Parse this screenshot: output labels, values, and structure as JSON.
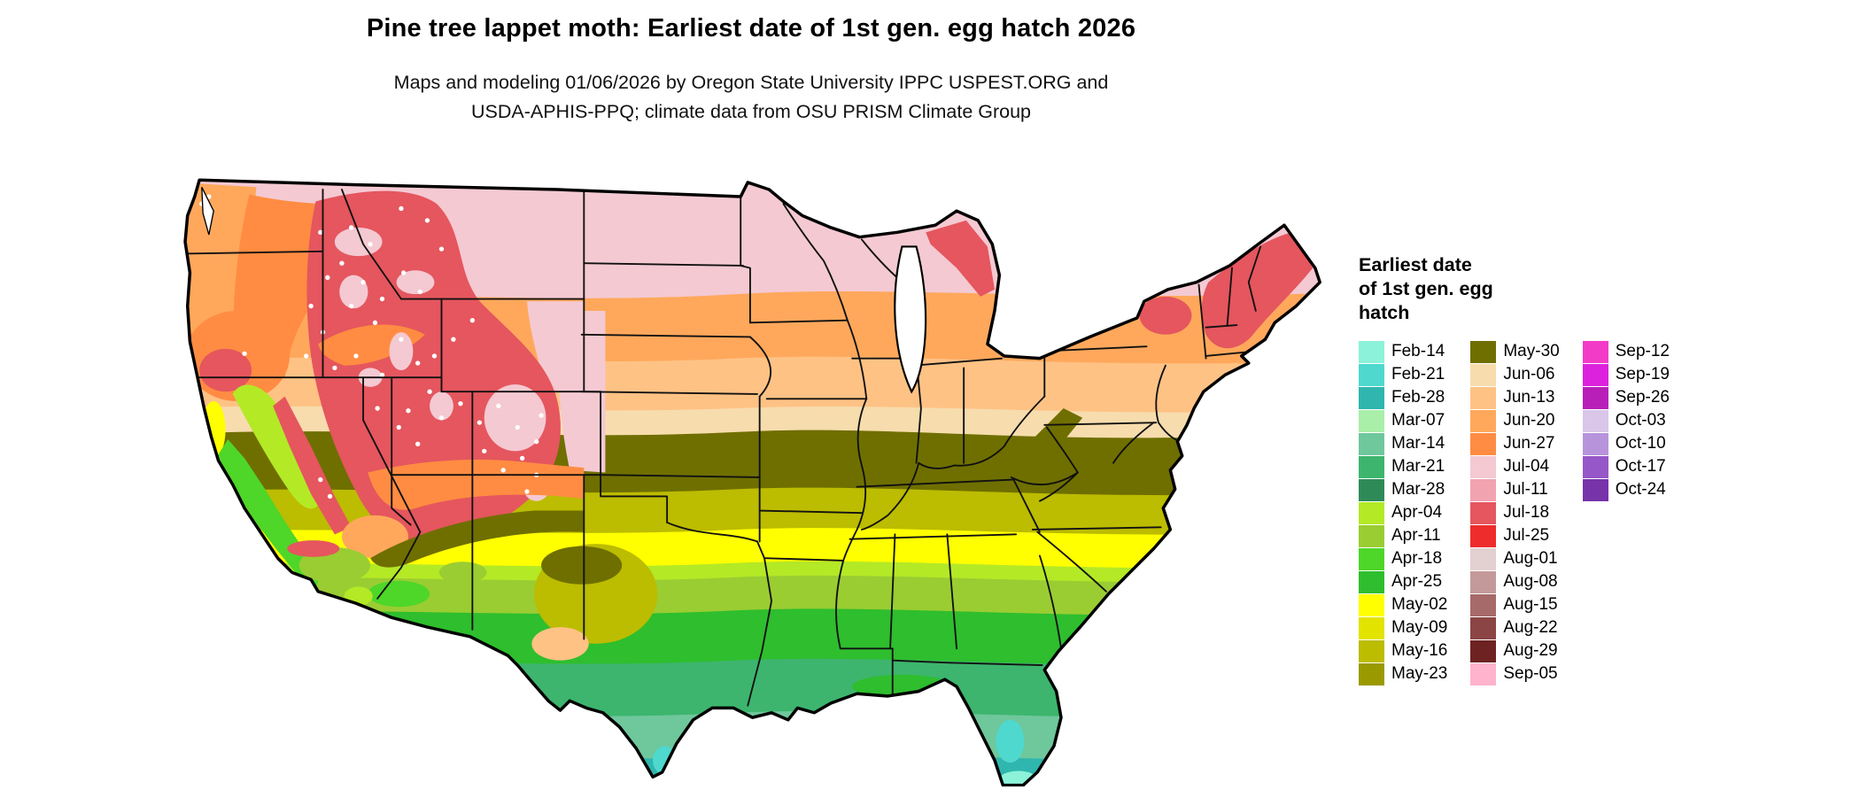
{
  "header": {
    "title": "Pine tree lappet moth: Earliest date of 1st gen. egg hatch 2026",
    "subtitle_line1": "Maps and modeling 01/06/2026 by Oregon State University IPPC USPEST.ORG and",
    "subtitle_line2": "USDA-APHIS-PPQ; climate data from OSU PRISM Climate Group"
  },
  "legend": {
    "title": "Earliest date\nof 1st gen. egg\nhatch",
    "columns": [
      [
        {
          "label": "Feb-14",
          "color": "#8cf2da"
        },
        {
          "label": "Feb-21",
          "color": "#4fd8ce"
        },
        {
          "label": "Feb-28",
          "color": "#2fb6ae"
        },
        {
          "label": "Mar-07",
          "color": "#a9efa9"
        },
        {
          "label": "Mar-14",
          "color": "#6fc79c"
        },
        {
          "label": "Mar-21",
          "color": "#3db56e"
        },
        {
          "label": "Mar-28",
          "color": "#2e8b57"
        },
        {
          "label": "Apr-04",
          "color": "#b4e926"
        },
        {
          "label": "Apr-11",
          "color": "#9acd32"
        },
        {
          "label": "Apr-18",
          "color": "#4ed629"
        },
        {
          "label": "Apr-25",
          "color": "#2ebe2e"
        },
        {
          "label": "May-02",
          "color": "#ffff00"
        },
        {
          "label": "May-09",
          "color": "#e3e300"
        },
        {
          "label": "May-16",
          "color": "#bcbc00"
        },
        {
          "label": "May-23",
          "color": "#9a9a00"
        }
      ],
      [
        {
          "label": "May-30",
          "color": "#6f6f00"
        },
        {
          "label": "Jun-06",
          "color": "#f7dcad"
        },
        {
          "label": "Jun-13",
          "color": "#ffc285"
        },
        {
          "label": "Jun-20",
          "color": "#ffa85c"
        },
        {
          "label": "Jun-27",
          "color": "#ff8c42"
        },
        {
          "label": "Jul-04",
          "color": "#f4c9d2"
        },
        {
          "label": "Jul-11",
          "color": "#f2a3b0"
        },
        {
          "label": "Jul-18",
          "color": "#e5565e"
        },
        {
          "label": "Jul-25",
          "color": "#ee2c2c"
        },
        {
          "label": "Aug-01",
          "color": "#e3d0d0"
        },
        {
          "label": "Aug-08",
          "color": "#c49999"
        },
        {
          "label": "Aug-15",
          "color": "#a66a6a"
        },
        {
          "label": "Aug-22",
          "color": "#8b4545"
        },
        {
          "label": "Aug-29",
          "color": "#6e2222"
        },
        {
          "label": "Sep-05",
          "color": "#ffb3cc"
        }
      ],
      [
        {
          "label": "Sep-12",
          "color": "#f23cc8"
        },
        {
          "label": "Sep-19",
          "color": "#dd22dd"
        },
        {
          "label": "Sep-26",
          "color": "#b81fb8"
        },
        {
          "label": "Oct-03",
          "color": "#d9c6e9"
        },
        {
          "label": "Oct-10",
          "color": "#b793dc"
        },
        {
          "label": "Oct-17",
          "color": "#9657c8"
        },
        {
          "label": "Oct-24",
          "color": "#7733aa"
        }
      ]
    ]
  }
}
